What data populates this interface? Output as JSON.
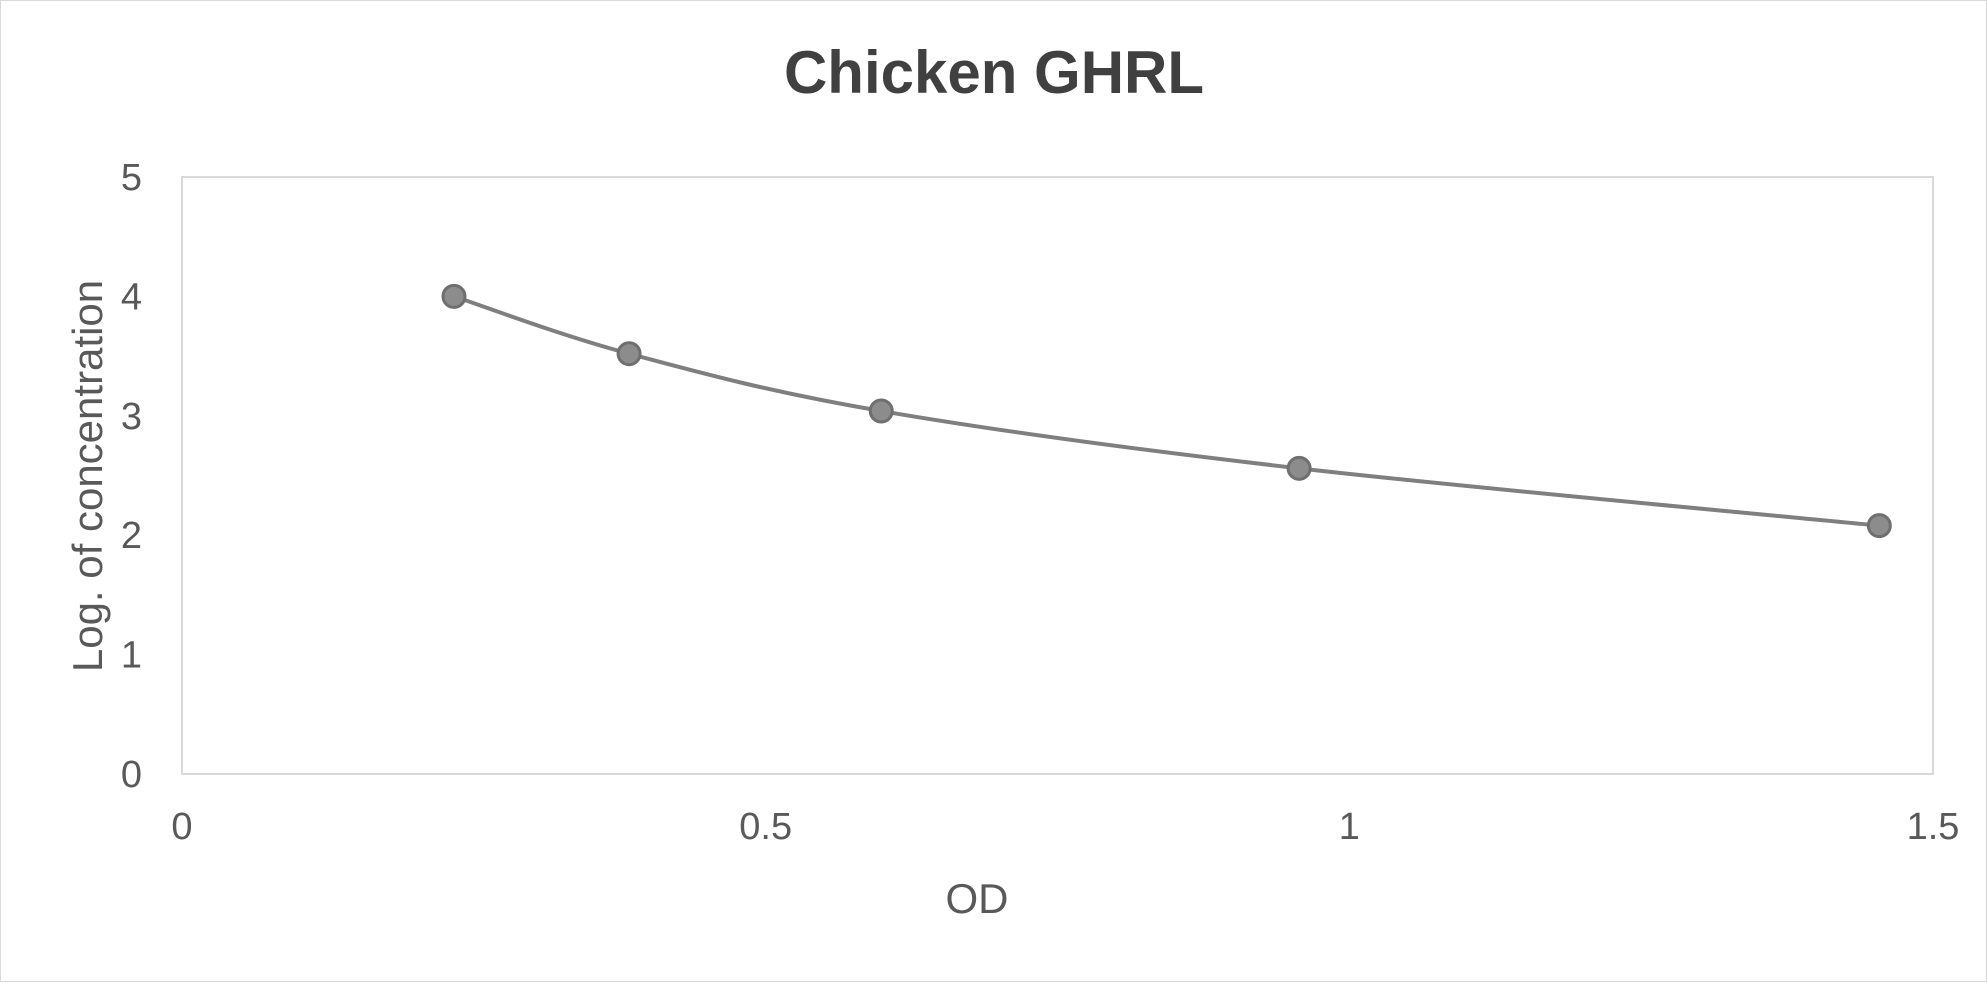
{
  "chart_data": {
    "type": "scatter",
    "title": "Chicken GHRL",
    "xlabel": "OD",
    "ylabel": "Log. of concentration",
    "xlim": [
      0,
      1.5
    ],
    "ylim": [
      0,
      5
    ],
    "xticks": [
      "0",
      "0.5",
      "1",
      "1.5"
    ],
    "yticks": [
      "0",
      "1",
      "2",
      "3",
      "4",
      "5"
    ],
    "grid": false,
    "legend": "none",
    "series": [
      {
        "x": [
          0.233,
          0.383,
          0.599,
          0.957,
          1.454
        ],
        "y": [
          4.0,
          3.52,
          3.04,
          2.56,
          2.08
        ],
        "line": "smooth",
        "marker": "circle",
        "color": "#7f7f7f"
      }
    ]
  }
}
